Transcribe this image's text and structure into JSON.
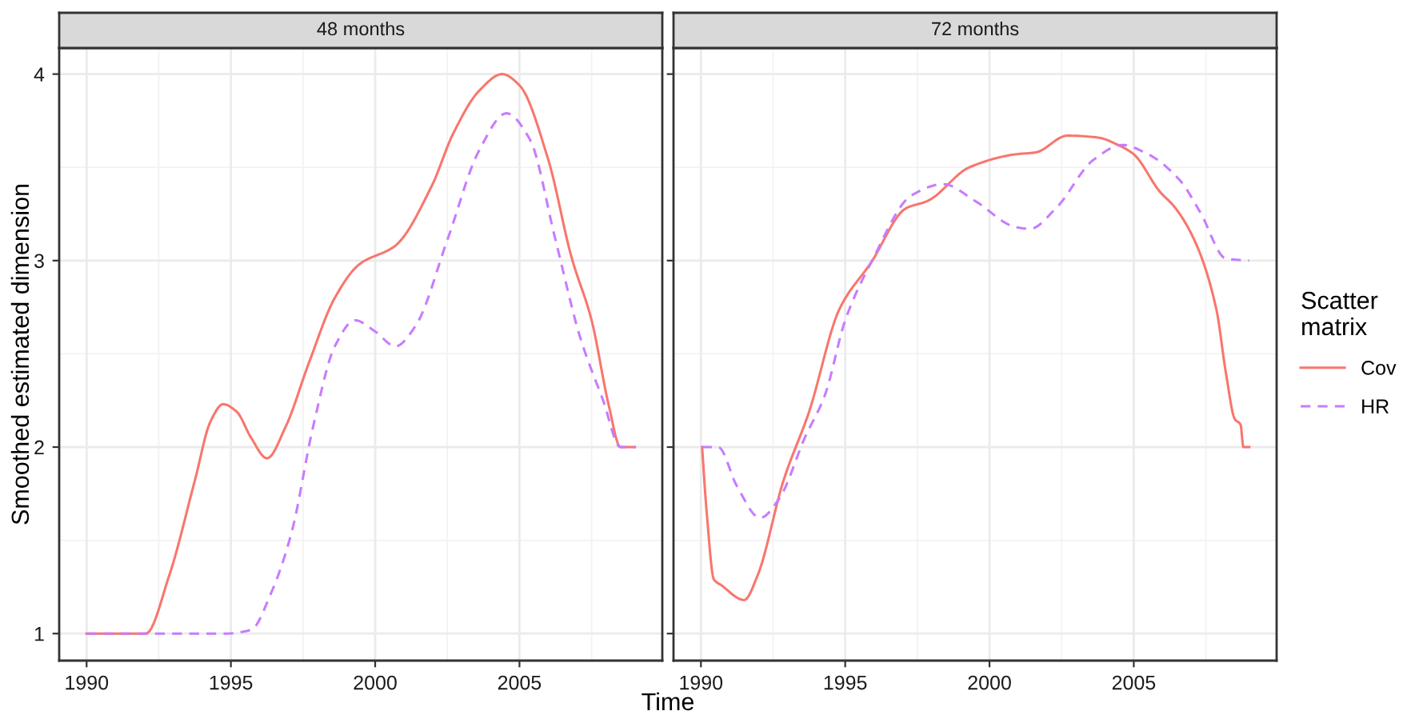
{
  "chart_data": [
    {
      "type": "line",
      "title": "48 months",
      "ylabel": "Smoothed estimated dimension",
      "xlabel": "Time",
      "xlim": [
        1989.05,
        2009.95
      ],
      "ylim": [
        0.855,
        4.14
      ],
      "xticks": [
        1990,
        1995,
        2000,
        2005
      ],
      "yticks": [
        1,
        2,
        3,
        4
      ],
      "grid": true,
      "legend": false,
      "series": [
        {
          "color": "#f8766d",
          "line_style": "solid",
          "x": [
            1990.0,
            1992.05,
            1992.86,
            1993.75,
            1994.3,
            1994.73,
            1995.2,
            1995.7,
            1996.25,
            1996.9,
            1997.7,
            1998.6,
            1999.45,
            2000.7,
            2001.96,
            2002.7,
            2003.6,
            2004.4,
            2005.0,
            2006.0,
            2006.8,
            2007.5,
            2008.1,
            2008.5,
            2009.0
          ],
          "values": [
            1,
            1,
            1.31,
            1.82,
            2.14,
            2.23,
            2.19,
            2.05,
            1.94,
            2.11,
            2.45,
            2.8,
            2.98,
            3.08,
            3.4,
            3.68,
            3.91,
            4.0,
            3.94,
            3.54,
            3.02,
            2.68,
            2.22,
            2.0,
            2.0
          ]
        },
        {
          "color": "#c77cff",
          "line_style": "dashed",
          "x": [
            1990.0,
            1994.8,
            1995.7,
            1996.4,
            1997.1,
            1997.85,
            1998.6,
            1999.3,
            2000.0,
            2000.7,
            2001.4,
            2002.5,
            2003.6,
            2004.55,
            2005.36,
            2006.25,
            2007.1,
            2007.9,
            2008.5,
            2009.0
          ],
          "values": [
            1,
            1,
            1.02,
            1.22,
            1.54,
            2.11,
            2.54,
            2.68,
            2.62,
            2.54,
            2.65,
            3.11,
            3.59,
            3.79,
            3.65,
            3.11,
            2.59,
            2.25,
            2.0,
            2.0
          ]
        }
      ]
    },
    {
      "type": "line",
      "title": "72 months",
      "legend_title": "Scatter\nmatrix",
      "xlim": [
        1989.05,
        2009.95
      ],
      "ylim": [
        0.855,
        4.14
      ],
      "xticks": [
        1990,
        1995,
        2000,
        2005
      ],
      "yticks": [
        1,
        2,
        3,
        4
      ],
      "tick_labels": "x",
      "grid": true,
      "legend": "right",
      "series": [
        {
          "name": "Cov",
          "color": "#f8766d",
          "line_style": "solid",
          "x": [
            1990.04,
            1990.2,
            1990.45,
            1990.7,
            1991.5,
            1991.96,
            1992.86,
            1993.75,
            1994.8,
            1995.9,
            1997.1,
            1997.86,
            1999.3,
            2000.9,
            2001.6,
            2002.7,
            2003.75,
            2004.46,
            2005.0,
            2005.9,
            2006.4,
            2007.1,
            2007.86,
            2008.2,
            2008.5,
            2008.7,
            2008.8,
            2009.0
          ],
          "values": [
            2.0,
            1.65,
            1.29,
            1.26,
            1.18,
            1.31,
            1.82,
            2.19,
            2.74,
            2.99,
            3.28,
            3.32,
            3.5,
            3.57,
            3.58,
            3.67,
            3.66,
            3.62,
            3.57,
            3.37,
            3.29,
            3.11,
            2.74,
            2.39,
            2.15,
            2.12,
            2.0,
            2.0
          ]
        },
        {
          "name": "HR",
          "color": "#c77cff",
          "line_style": "dashed",
          "x": [
            1990.04,
            1990.6,
            1991.25,
            1992.05,
            1992.7,
            1993.6,
            1994.3,
            1995.0,
            1995.9,
            1997.3,
            1998.4,
            1999.5,
            2000.9,
            2001.4,
            2002.3,
            2003.6,
            2004.6,
            2005.5,
            2006.6,
            2007.3,
            2008.2,
            2009.0
          ],
          "values": [
            2.0,
            2.0,
            1.79,
            1.62,
            1.72,
            2.05,
            2.28,
            2.68,
            2.99,
            3.35,
            3.41,
            3.32,
            3.18,
            3.17,
            3.28,
            3.54,
            3.62,
            3.57,
            3.43,
            3.26,
            3.01,
            3.0
          ]
        }
      ]
    }
  ]
}
